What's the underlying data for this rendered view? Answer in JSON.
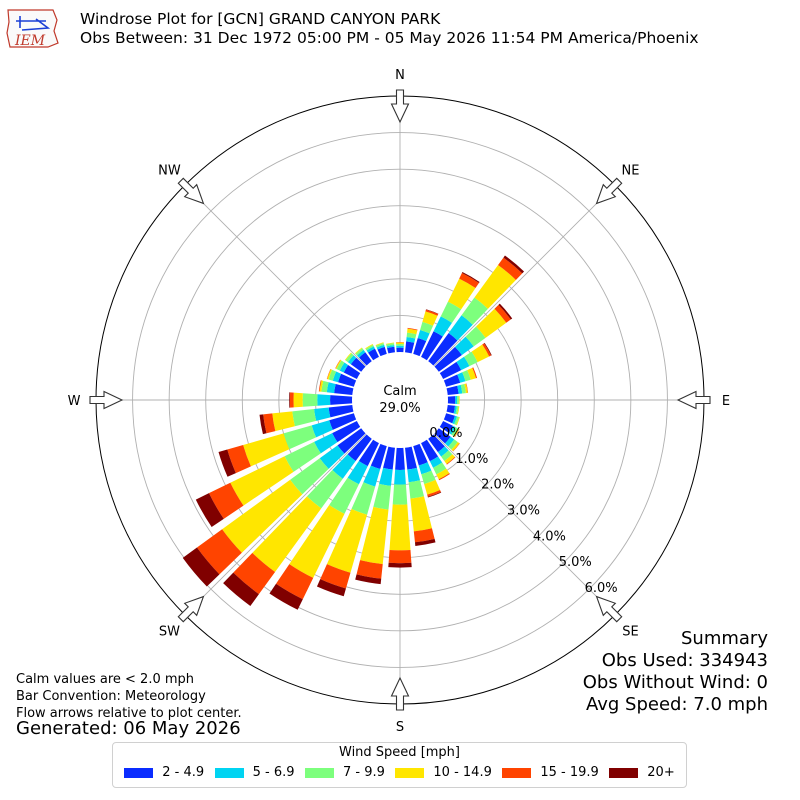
{
  "header": {
    "logo_text": "IEM",
    "title_line1": "Windrose Plot for [GCN] GRAND CANYON PARK",
    "title_line2": "Obs Between: 31 Dec 1972 05:00 PM - 05 May 2026 11:54 PM America/Phoenix"
  },
  "notes": {
    "line1": "Calm values are < 2.0 mph",
    "line2": "Bar Convention: Meteorology",
    "line3": "Flow arrows relative to plot center.",
    "generated": "Generated: 06 May 2026"
  },
  "summary": {
    "title": "Summary",
    "obs_used": "Obs Used: 334943",
    "obs_without_wind": "Obs Without Wind: 0",
    "avg_speed": "Avg Speed: 7.0 mph"
  },
  "chart_data": {
    "type": "windrose",
    "calm_label": "Calm",
    "calm_value": "29.0%",
    "directions": [
      "N",
      "NE",
      "E",
      "SE",
      "S",
      "SW",
      "W",
      "NW"
    ],
    "sectors_deg": [
      0,
      10,
      20,
      30,
      40,
      50,
      60,
      70,
      80,
      90,
      100,
      110,
      120,
      130,
      140,
      150,
      160,
      170,
      180,
      190,
      200,
      210,
      220,
      230,
      240,
      250,
      260,
      270,
      280,
      290,
      300,
      310,
      320,
      330,
      340,
      350
    ],
    "radial_ticks": [
      0,
      1,
      2,
      3,
      4,
      5,
      6
    ],
    "radial_tick_labels": [
      "0.0%",
      "1.0%",
      "2.0%",
      "3.0%",
      "4.0%",
      "5.0%",
      "6.0%"
    ],
    "radial_max": 7.0,
    "legend_title": "Wind Speed [mph]",
    "bins": [
      {
        "label": "2 - 4.9",
        "color": "#0a2cff"
      },
      {
        "label": "5 - 6.9",
        "color": "#00d4f2"
      },
      {
        "label": "7 - 9.9",
        "color": "#7dff7d"
      },
      {
        "label": "10 - 14.9",
        "color": "#ffe600"
      },
      {
        "label": "15 - 19.9",
        "color": "#ff4400"
      },
      {
        "label": "20+",
        "color": "#800000"
      }
    ],
    "values": [
      [
        0.12,
        0.05,
        0.05,
        0.04,
        0.01,
        0.0
      ],
      [
        0.3,
        0.12,
        0.12,
        0.11,
        0.02,
        0.0
      ],
      [
        0.45,
        0.23,
        0.23,
        0.3,
        0.05,
        0.01
      ],
      [
        0.78,
        0.45,
        0.45,
        0.7,
        0.17,
        0.03
      ],
      [
        0.95,
        0.6,
        0.6,
        1.1,
        0.25,
        0.07
      ],
      [
        0.78,
        0.4,
        0.4,
        0.7,
        0.15,
        0.05
      ],
      [
        0.55,
        0.25,
        0.25,
        0.35,
        0.06,
        0.02
      ],
      [
        0.4,
        0.15,
        0.15,
        0.15,
        0.03,
        0.0
      ],
      [
        0.3,
        0.1,
        0.1,
        0.05,
        0.01,
        0.0
      ],
      [
        0.2,
        0.05,
        0.05,
        0.02,
        0.0,
        0.0
      ],
      [
        0.2,
        0.05,
        0.05,
        0.02,
        0.0,
        0.0
      ],
      [
        0.25,
        0.06,
        0.06,
        0.02,
        0.0,
        0.0
      ],
      [
        0.3,
        0.08,
        0.08,
        0.03,
        0.01,
        0.0
      ],
      [
        0.4,
        0.12,
        0.12,
        0.06,
        0.01,
        0.0
      ],
      [
        0.45,
        0.15,
        0.15,
        0.1,
        0.02,
        0.0
      ],
      [
        0.55,
        0.2,
        0.2,
        0.15,
        0.03,
        0.0
      ],
      [
        0.55,
        0.25,
        0.28,
        0.3,
        0.06,
        0.02
      ],
      [
        0.6,
        0.35,
        0.45,
        0.9,
        0.3,
        0.1
      ],
      [
        0.6,
        0.4,
        0.55,
        1.25,
        0.35,
        0.12
      ],
      [
        0.6,
        0.45,
        0.65,
        1.5,
        0.4,
        0.15
      ],
      [
        0.65,
        0.5,
        0.8,
        1.65,
        0.45,
        0.22
      ],
      [
        0.7,
        0.55,
        0.9,
        1.95,
        0.65,
        0.32
      ],
      [
        0.75,
        0.6,
        1.0,
        2.15,
        0.75,
        0.4
      ],
      [
        0.8,
        0.6,
        1.0,
        2.3,
        0.85,
        0.48
      ],
      [
        0.75,
        0.55,
        0.9,
        1.65,
        0.65,
        0.4
      ],
      [
        0.7,
        0.5,
        0.8,
        1.15,
        0.45,
        0.25
      ],
      [
        0.65,
        0.4,
        0.6,
        0.55,
        0.25,
        0.1
      ],
      [
        0.6,
        0.35,
        0.4,
        0.25,
        0.1,
        0.02
      ],
      [
        0.5,
        0.2,
        0.15,
        0.05,
        0.02,
        0.0
      ],
      [
        0.45,
        0.15,
        0.12,
        0.04,
        0.01,
        0.0
      ],
      [
        0.4,
        0.12,
        0.1,
        0.03,
        0.01,
        0.0
      ],
      [
        0.35,
        0.1,
        0.08,
        0.02,
        0.0,
        0.0
      ],
      [
        0.3,
        0.08,
        0.06,
        0.02,
        0.0,
        0.0
      ],
      [
        0.25,
        0.07,
        0.05,
        0.02,
        0.0,
        0.0
      ],
      [
        0.2,
        0.06,
        0.05,
        0.02,
        0.0,
        0.0
      ],
      [
        0.15,
        0.05,
        0.05,
        0.02,
        0.0,
        0.0
      ]
    ]
  }
}
